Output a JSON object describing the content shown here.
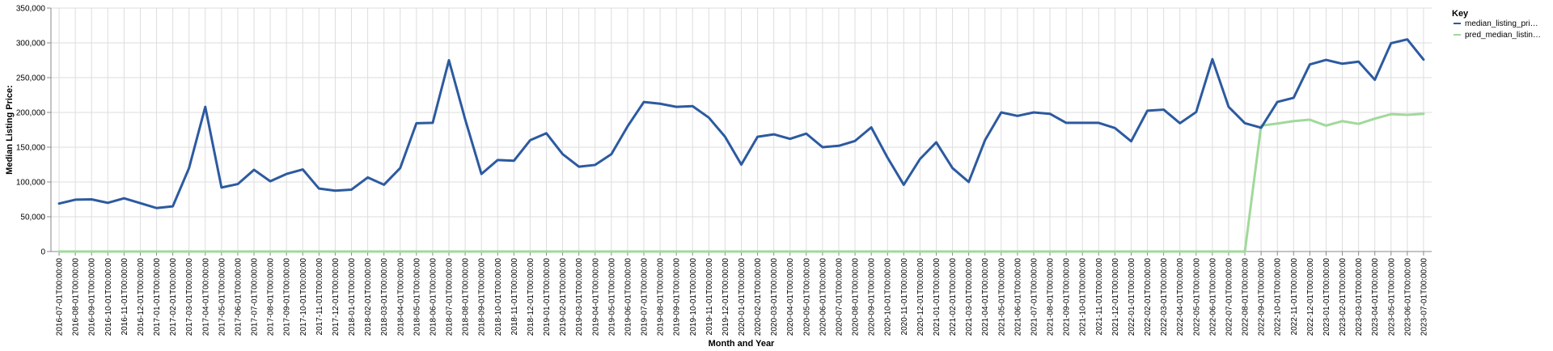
{
  "chart_data": {
    "type": "line",
    "xlabel": "Month and Year",
    "ylabel": "Median Listing Price:",
    "ylim": [
      0,
      350000
    ],
    "yticks": [
      "0",
      "50,000",
      "100,000",
      "150,000",
      "200,000",
      "250,000",
      "300,000",
      "350,000"
    ],
    "grid": true,
    "legend": {
      "title": "Key",
      "position": "top-right"
    },
    "x": [
      "2016-07-01T00:00:00",
      "2016-08-01T00:00:00",
      "2016-09-01T00:00:00",
      "2016-10-01T00:00:00",
      "2016-11-01T00:00:00",
      "2016-12-01T00:00:00",
      "2017-01-01T00:00:00",
      "2017-02-01T00:00:00",
      "2017-03-01T00:00:00",
      "2017-04-01T00:00:00",
      "2017-05-01T00:00:00",
      "2017-06-01T00:00:00",
      "2017-07-01T00:00:00",
      "2017-08-01T00:00:00",
      "2017-09-01T00:00:00",
      "2017-10-01T00:00:00",
      "2017-11-01T00:00:00",
      "2017-12-01T00:00:00",
      "2018-01-01T00:00:00",
      "2018-02-01T00:00:00",
      "2018-03-01T00:00:00",
      "2018-04-01T00:00:00",
      "2018-05-01T00:00:00",
      "2018-06-01T00:00:00",
      "2018-07-01T00:00:00",
      "2018-08-01T00:00:00",
      "2018-09-01T00:00:00",
      "2018-10-01T00:00:00",
      "2018-11-01T00:00:00",
      "2018-12-01T00:00:00",
      "2019-01-01T00:00:00",
      "2019-02-01T00:00:00",
      "2019-03-01T00:00:00",
      "2019-04-01T00:00:00",
      "2019-05-01T00:00:00",
      "2019-06-01T00:00:00",
      "2019-07-01T00:00:00",
      "2019-08-01T00:00:00",
      "2019-09-01T00:00:00",
      "2019-10-01T00:00:00",
      "2019-11-01T00:00:00",
      "2019-12-01T00:00:00",
      "2020-01-01T00:00:00",
      "2020-02-01T00:00:00",
      "2020-03-01T00:00:00",
      "2020-04-01T00:00:00",
      "2020-05-01T00:00:00",
      "2020-06-01T00:00:00",
      "2020-07-01T00:00:00",
      "2020-08-01T00:00:00",
      "2020-09-01T00:00:00",
      "2020-10-01T00:00:00",
      "2020-11-01T00:00:00",
      "2020-12-01T00:00:00",
      "2021-01-01T00:00:00",
      "2021-02-01T00:00:00",
      "2021-03-01T00:00:00",
      "2021-04-01T00:00:00",
      "2021-05-01T00:00:00",
      "2021-06-01T00:00:00",
      "2021-07-01T00:00:00",
      "2021-08-01T00:00:00",
      "2021-09-01T00:00:00",
      "2021-10-01T00:00:00",
      "2021-11-01T00:00:00",
      "2021-12-01T00:00:00",
      "2022-01-01T00:00:00",
      "2022-02-01T00:00:00",
      "2022-03-01T00:00:00",
      "2022-04-01T00:00:00",
      "2022-05-01T00:00:00",
      "2022-06-01T00:00:00",
      "2022-07-01T00:00:00",
      "2022-08-01T00:00:00",
      "2022-09-01T00:00:00",
      "2022-10-01T00:00:00",
      "2022-11-01T00:00:00",
      "2022-12-01T00:00:00",
      "2023-01-01T00:00:00",
      "2023-02-01T00:00:00",
      "2023-03-01T00:00:00",
      "2023-04-01T00:00:00",
      "2023-05-01T00:00:00",
      "2023-06-01T00:00:00",
      "2023-07-01T00:00:00"
    ],
    "series": [
      {
        "name": "median_listing_pri…",
        "color": "#2c5aa0",
        "values": [
          69000,
          74500,
          75000,
          70000,
          76500,
          69500,
          62500,
          65000,
          120000,
          208000,
          92000,
          97000,
          117500,
          101000,
          111500,
          118000,
          90500,
          87500,
          89000,
          106500,
          96000,
          120000,
          184500,
          185000,
          275000,
          190000,
          111500,
          131500,
          130500,
          160000,
          170000,
          140000,
          122000,
          124500,
          140000,
          180000,
          215000,
          212500,
          208000,
          209000,
          192500,
          165000,
          125000,
          165000,
          168500,
          162000,
          169500,
          150000,
          152000,
          159000,
          178500,
          135000,
          96000,
          133000,
          157000,
          120000,
          100000,
          160000,
          200000,
          195000,
          200000,
          198000,
          185000,
          185000,
          185000,
          177500,
          158500,
          202500,
          204000,
          184500,
          200500,
          276500,
          208000,
          184500,
          178000,
          215000,
          221000,
          269000,
          275500,
          270000,
          273000,
          247000,
          299500,
          305000,
          276000
        ]
      },
      {
        "name": "pred_median_listin…",
        "color": "#a1d99b",
        "values": [
          0,
          0,
          0,
          0,
          0,
          0,
          0,
          0,
          0,
          0,
          0,
          0,
          0,
          0,
          0,
          0,
          0,
          0,
          0,
          0,
          0,
          0,
          0,
          0,
          0,
          0,
          0,
          0,
          0,
          0,
          0,
          0,
          0,
          0,
          0,
          0,
          0,
          0,
          0,
          0,
          0,
          0,
          0,
          0,
          0,
          0,
          0,
          0,
          0,
          0,
          0,
          0,
          0,
          0,
          0,
          0,
          0,
          0,
          0,
          0,
          0,
          0,
          0,
          0,
          0,
          0,
          0,
          0,
          0,
          0,
          0,
          0,
          0,
          0,
          181000,
          184000,
          187500,
          189500,
          181000,
          187500,
          183500,
          191000,
          197500,
          196500,
          198000
        ]
      }
    ]
  }
}
